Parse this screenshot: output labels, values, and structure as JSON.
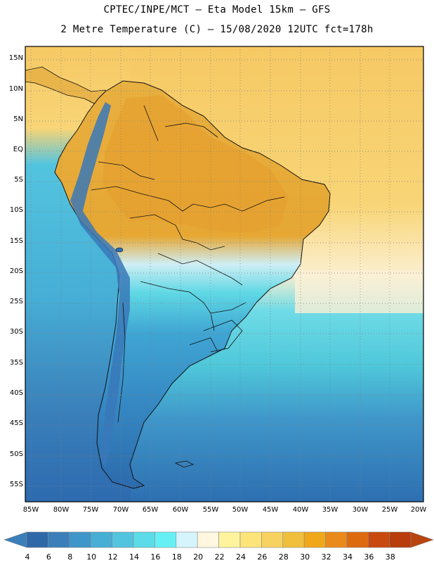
{
  "header": {
    "line1": "CPTEC/INPE/MCT –  Eta Model 15km – GFS",
    "line2": "2 Metre Temperature (C) – 15/08/2020 12UTC fct=178h"
  },
  "map": {
    "lat_labels": [
      "15N",
      "10N",
      "5N",
      "EQ",
      "5S",
      "10S",
      "15S",
      "20S",
      "25S",
      "30S",
      "35S",
      "40S",
      "45S",
      "50S",
      "55S"
    ],
    "lon_labels": [
      "85W",
      "80W",
      "75W",
      "70W",
      "65W",
      "60W",
      "55W",
      "50W",
      "45W",
      "40W",
      "35W",
      "30W",
      "25W",
      "20W"
    ],
    "colors": {
      "ocean_warm": "#f5cf6a",
      "ocean_cool": "#4fc8da",
      "ocean_cold": "#2d6fb1",
      "land_hot": "#e5a32a",
      "land_mid": "#3f9fd1",
      "coast": "#111111"
    }
  },
  "colorbar": {
    "labels": [
      "4",
      "6",
      "8",
      "10",
      "12",
      "14",
      "16",
      "18",
      "20",
      "22",
      "24",
      "26",
      "28",
      "30",
      "32",
      "34",
      "36",
      "38"
    ],
    "colors": [
      "#2e68a8",
      "#3a7fba",
      "#3f96c9",
      "#47aed6",
      "#53c4df",
      "#5cdbe8",
      "#66f0f4",
      "#d6f4fb",
      "#fff7e0",
      "#fff49d",
      "#fde47a",
      "#f8d260",
      "#f0bf3c",
      "#f0a81a",
      "#ea8a1d",
      "#de6a10",
      "#c94a0e",
      "#b83c0c"
    ],
    "under_color": "#3a7fba",
    "over_color": "#b84410"
  }
}
